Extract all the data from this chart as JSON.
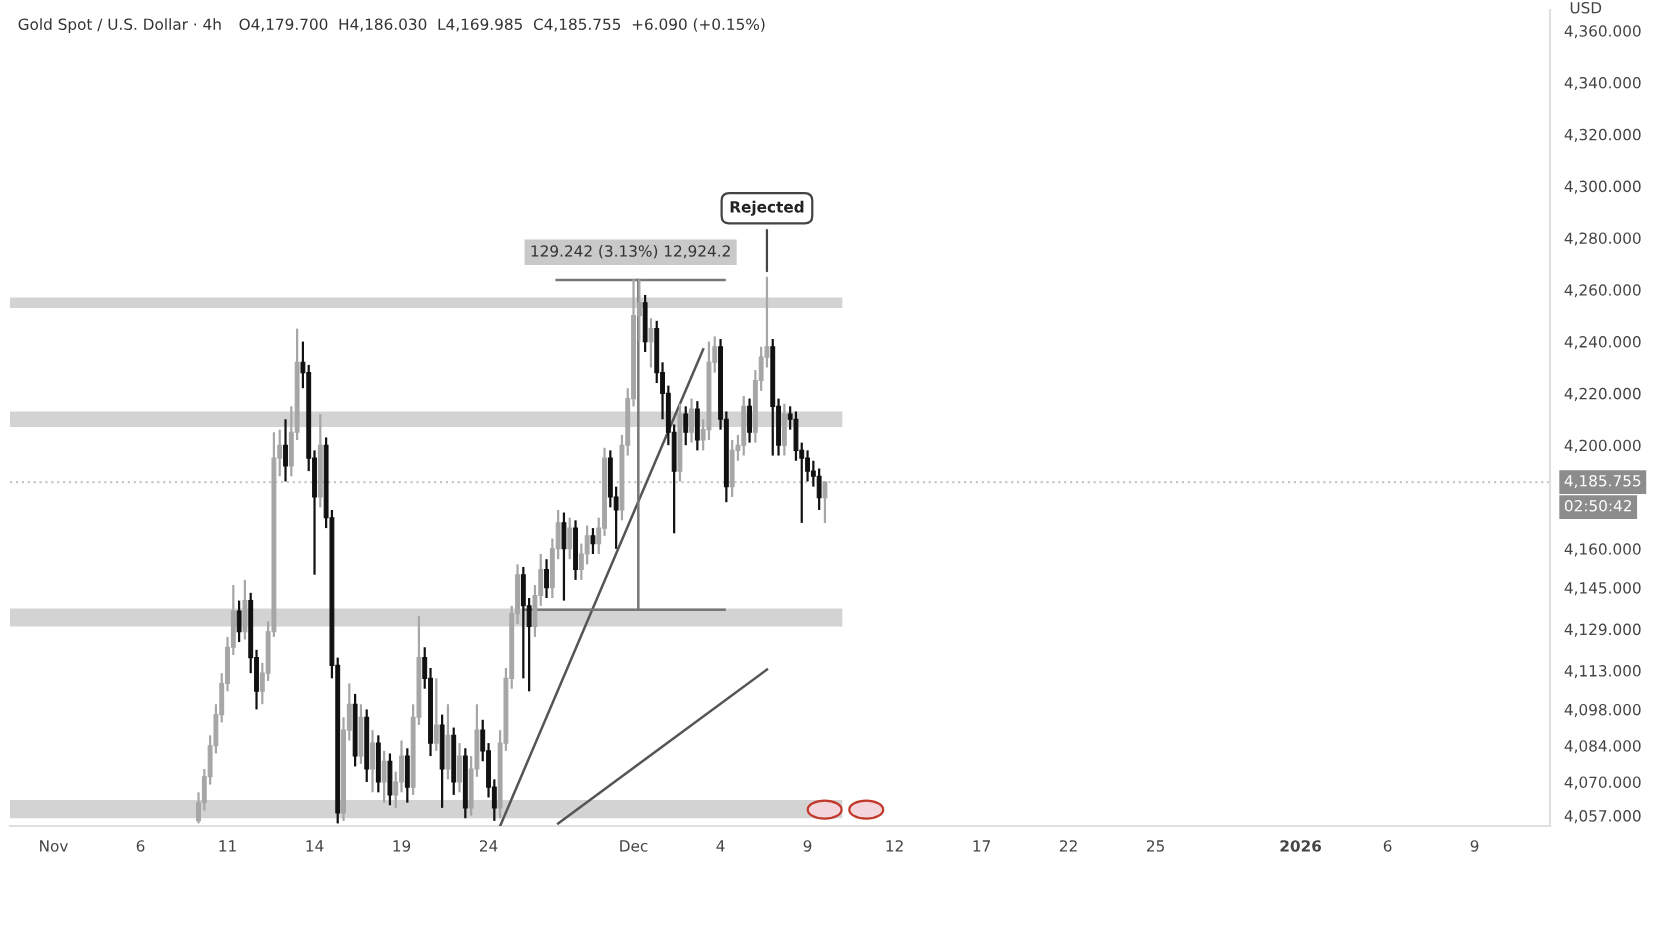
{
  "chart_data": {
    "type": "candlestick",
    "title": "Gold Spot / U.S. Dollar · 4h",
    "subtitle": "O4,179.700  H4,186.030  L4,169.985  C4,185.755  +6.090 (+0.15%)",
    "ylabel": "USD",
    "categories": [
      "Nov",
      null,
      null,
      null,
      null,
      null,
      null,
      null,
      null,
      null,
      null,
      null,
      null,
      null,
      null,
      "6",
      null,
      null,
      null,
      null,
      null,
      null,
      null,
      null,
      null,
      null,
      null,
      null,
      null,
      null,
      "11",
      null,
      null,
      null,
      null,
      null,
      null,
      null,
      null,
      null,
      null,
      null,
      null,
      null,
      null,
      "14",
      null,
      null,
      null,
      null,
      null,
      null,
      null,
      null,
      null,
      null,
      null,
      null,
      null,
      null,
      "19",
      null,
      null,
      null,
      null,
      null,
      null,
      null,
      null,
      null,
      null,
      null,
      null,
      null,
      null,
      "24",
      null,
      null,
      null,
      null,
      null,
      null,
      null,
      null,
      null,
      null,
      null,
      null,
      null,
      null,
      null,
      null,
      null,
      null,
      null,
      null,
      null,
      null,
      null,
      null,
      "Dec",
      null,
      null,
      null,
      null,
      null,
      null,
      null,
      null,
      null,
      null,
      null,
      null,
      null,
      null,
      "4",
      null,
      null,
      null,
      null,
      null,
      null,
      null,
      null,
      null,
      null,
      null,
      null,
      null,
      null,
      "9",
      null,
      null,
      null,
      null,
      null,
      null,
      null,
      null,
      null,
      null,
      null,
      null,
      null,
      null,
      "12",
      null,
      null,
      null,
      null,
      null,
      null,
      null,
      null,
      null,
      null,
      null,
      null,
      null,
      null,
      "17",
      null,
      null,
      null,
      null,
      null,
      null,
      null,
      null,
      null,
      null,
      null,
      null,
      null,
      null,
      "22",
      null,
      null,
      null,
      null,
      null,
      null,
      null,
      null,
      null,
      null,
      null,
      null,
      null,
      null,
      "25",
      null,
      null,
      null,
      null,
      null,
      null,
      null,
      null,
      null,
      null,
      null,
      null,
      null,
      null,
      null,
      null,
      null,
      null,
      null,
      null,
      null,
      null,
      null,
      null,
      "2026",
      null,
      null,
      null,
      null,
      null,
      null,
      null,
      null,
      null,
      null,
      null,
      null,
      null,
      null,
      "6",
      null,
      null,
      null,
      null,
      null,
      null,
      null,
      null,
      null,
      null,
      null,
      null,
      null,
      null,
      "9",
      null,
      null,
      null,
      null,
      null,
      null,
      null,
      null,
      null,
      null,
      null,
      null,
      null,
      null,
      null
    ],
    "ohlc": [
      null,
      null,
      null,
      null,
      null,
      null,
      null,
      null,
      null,
      null,
      null,
      null,
      null,
      null,
      null,
      null,
      null,
      null,
      null,
      null,
      null,
      null,
      null,
      null,
      null,
      [
        4055,
        4066,
        4054,
        4062
      ],
      [
        4062,
        4075,
        4059,
        4072
      ],
      [
        4072,
        4088,
        4069,
        4084
      ],
      [
        4084,
        4100,
        4081,
        4096
      ],
      [
        4096,
        4112,
        4093,
        4108
      ],
      [
        4108,
        4126,
        4105,
        4122
      ],
      [
        4122,
        4146,
        4119,
        4136
      ],
      [
        4136,
        4140,
        4124,
        4128
      ],
      [
        4128,
        4148,
        4125,
        4140
      ],
      [
        4140,
        4143,
        4112,
        4118
      ],
      [
        4118,
        4121,
        4098,
        4105
      ],
      [
        4105,
        4116,
        4100,
        4112
      ],
      [
        4112,
        4132,
        4109,
        4128
      ],
      [
        4128,
        4205,
        4126,
        4195
      ],
      [
        4195,
        4206,
        4188,
        4200
      ],
      [
        4200,
        4210,
        4186,
        4192
      ],
      [
        4192,
        4215,
        4188,
        4205
      ],
      [
        4205,
        4245,
        4202,
        4232
      ],
      [
        4232,
        4240,
        4222,
        4228
      ],
      [
        4228,
        4231,
        4190,
        4195
      ],
      [
        4195,
        4198,
        4150,
        4180
      ],
      [
        4180,
        4212,
        4176,
        4200
      ],
      [
        4200,
        4203,
        4168,
        4172
      ],
      [
        4172,
        4175,
        4110,
        4115
      ],
      [
        4115,
        4118,
        4054,
        4058
      ],
      [
        4058,
        4095,
        4055,
        4090
      ],
      [
        4090,
        4108,
        4086,
        4100
      ],
      [
        4100,
        4104,
        4076,
        4080
      ],
      [
        4080,
        4100,
        4077,
        4095
      ],
      [
        4095,
        4098,
        4070,
        4075
      ],
      [
        4075,
        4090,
        4066,
        4085
      ],
      [
        4085,
        4088,
        4066,
        4070
      ],
      [
        4070,
        4082,
        4062,
        4078
      ],
      [
        4078,
        4081,
        4061,
        4065
      ],
      [
        4065,
        4074,
        4060,
        4070
      ],
      [
        4070,
        4086,
        4066,
        4080
      ],
      [
        4080,
        4083,
        4062,
        4068
      ],
      [
        4068,
        4100,
        4065,
        4095
      ],
      [
        4095,
        4134,
        4092,
        4118
      ],
      [
        4118,
        4122,
        4106,
        4110
      ],
      [
        4110,
        4114,
        4080,
        4085
      ],
      [
        4085,
        4110,
        4082,
        4092
      ],
      [
        4092,
        4096,
        4060,
        4075
      ],
      [
        4075,
        4100,
        4071,
        4088
      ],
      [
        4088,
        4091,
        4065,
        4070
      ],
      [
        4070,
        4085,
        4066,
        4080
      ],
      [
        4080,
        4083,
        4056,
        4060
      ],
      [
        4060,
        4080,
        4057,
        4075
      ],
      [
        4075,
        4100,
        4072,
        4090
      ],
      [
        4090,
        4094,
        4078,
        4082
      ],
      [
        4082,
        4085,
        4064,
        4068
      ],
      [
        4068,
        4071,
        4055,
        4060
      ],
      [
        4060,
        4090,
        4056,
        4085
      ],
      [
        4085,
        4114,
        4082,
        4110
      ],
      [
        4110,
        4138,
        4106,
        4135
      ],
      [
        4135,
        4154,
        4131,
        4150
      ],
      [
        4150,
        4153,
        4110,
        4138
      ],
      [
        4138,
        4141,
        4105,
        4130
      ],
      [
        4130,
        4146,
        4126,
        4142
      ],
      [
        4142,
        4158,
        4138,
        4152
      ],
      [
        4152,
        4156,
        4141,
        4145
      ],
      [
        4145,
        4164,
        4141,
        4160
      ],
      [
        4160,
        4175,
        4156,
        4170
      ],
      [
        4170,
        4174,
        4140,
        4160
      ],
      [
        4160,
        4172,
        4156,
        4168
      ],
      [
        4168,
        4171,
        4148,
        4152
      ],
      [
        4152,
        4162,
        4148,
        4158
      ],
      [
        4158,
        4169,
        4154,
        4165
      ],
      [
        4165,
        4168,
        4158,
        4162
      ],
      [
        4162,
        4172,
        4158,
        4168
      ],
      [
        4168,
        4199,
        4165,
        4195
      ],
      [
        4195,
        4198,
        4176,
        4180
      ],
      [
        4180,
        4184,
        4160,
        4175
      ],
      [
        4175,
        4204,
        4171,
        4200
      ],
      [
        4200,
        4222,
        4196,
        4218
      ],
      [
        4218,
        4264,
        4215,
        4250
      ],
      [
        4250,
        4264,
        4240,
        4255
      ],
      [
        4255,
        4258,
        4236,
        4240
      ],
      [
        4240,
        4249,
        4230,
        4245
      ],
      [
        4245,
        4248,
        4224,
        4228
      ],
      [
        4228,
        4232,
        4210,
        4220
      ],
      [
        4220,
        4223,
        4200,
        4205
      ],
      [
        4205,
        4208,
        4166,
        4190
      ],
      [
        4190,
        4216,
        4186,
        4212
      ],
      [
        4212,
        4215,
        4200,
        4205
      ],
      [
        4205,
        4218,
        4201,
        4214
      ],
      [
        4214,
        4217,
        4198,
        4202
      ],
      [
        4202,
        4210,
        4198,
        4206
      ],
      [
        4206,
        4240,
        4202,
        4232
      ],
      [
        4232,
        4242,
        4228,
        4238
      ],
      [
        4238,
        4241,
        4206,
        4210
      ],
      [
        4210,
        4213,
        4178,
        4184
      ],
      [
        4184,
        4202,
        4180,
        4198
      ],
      [
        4198,
        4204,
        4194,
        4200
      ],
      [
        4200,
        4219,
        4196,
        4215
      ],
      [
        4215,
        4218,
        4201,
        4205
      ],
      [
        4205,
        4229,
        4201,
        4225
      ],
      [
        4225,
        4238,
        4221,
        4234
      ],
      [
        4234,
        4265,
        4230,
        4238
      ],
      [
        4238,
        4241,
        4196,
        4215
      ],
      [
        4215,
        4218,
        4196,
        4200
      ],
      [
        4200,
        4216,
        4196,
        4212
      ],
      [
        4212,
        4215,
        4206,
        4210
      ],
      [
        4210,
        4213,
        4194,
        4198
      ],
      [
        4198,
        4201,
        4170,
        4195
      ],
      [
        4195,
        4198,
        4186,
        4190
      ],
      [
        4190,
        4194,
        4184,
        4188
      ],
      [
        4188,
        4191,
        4175,
        4179.7
      ],
      [
        4179.7,
        4186.03,
        4169.985,
        4185.755
      ],
      null,
      null,
      null,
      null,
      null,
      null,
      null,
      null,
      null,
      null,
      null,
      null,
      null,
      null,
      null,
      null,
      null,
      null,
      null,
      null,
      null,
      null,
      null,
      null,
      null,
      null,
      null,
      null,
      null,
      null,
      null,
      null,
      null,
      null,
      null,
      null,
      null,
      null,
      null,
      null,
      null,
      null,
      null,
      null,
      null,
      null,
      null,
      null,
      null,
      null,
      null,
      null,
      null,
      null,
      null,
      null,
      null,
      null,
      null,
      null,
      null,
      null,
      null,
      null,
      null,
      null,
      null,
      null,
      null,
      null,
      null,
      null,
      null,
      null,
      null,
      null,
      null,
      null,
      null,
      null,
      null,
      null,
      null,
      null,
      null,
      null,
      null,
      null,
      null,
      null,
      null,
      null,
      null,
      null,
      null,
      null,
      null,
      null,
      null,
      null,
      null,
      null,
      null,
      null,
      null,
      null,
      null,
      null,
      null,
      null,
      null,
      null,
      null,
      null,
      null,
      null,
      null,
      null,
      null,
      null,
      null,
      null,
      null,
      null,
      null,
      null,
      null
    ],
    "series": [
      {
        "type": "line",
        "color": "#555555",
        "values": [
          null,
          null,
          null,
          null,
          null,
          null,
          null,
          null,
          null,
          null,
          null,
          null,
          null,
          null,
          null,
          null,
          null,
          null,
          null,
          null,
          null,
          null,
          null,
          null,
          null,
          null,
          null,
          null,
          null,
          null,
          null,
          null,
          null,
          null,
          null,
          null,
          null,
          null,
          null,
          null,
          null,
          null,
          null,
          null,
          null,
          null,
          null,
          null,
          null,
          null,
          null,
          null,
          null,
          null,
          null,
          null,
          null,
          null,
          null,
          null,
          null,
          null,
          null,
          null,
          null,
          null,
          null,
          null,
          null,
          null,
          null,
          null,
          null,
          null,
          null,
          null,
          null,
          4053,
          null,
          null,
          null,
          null,
          null,
          null,
          null,
          null,
          null,
          null,
          null,
          null,
          null,
          null,
          null,
          null,
          null,
          null,
          null,
          null,
          null,
          null,
          null,
          null,
          null,
          null,
          null,
          null,
          null,
          null,
          null,
          null,
          null,
          null,
          4237,
          null,
          null,
          null,
          null,
          null,
          null,
          null,
          null,
          null,
          null,
          null,
          null,
          null,
          null,
          null,
          null,
          null,
          null,
          null,
          null,
          null,
          null,
          null,
          null,
          null,
          null,
          null,
          null,
          null,
          null,
          null,
          null,
          null,
          null,
          null,
          null,
          null,
          null,
          null,
          null,
          null,
          null,
          null,
          null,
          null,
          null,
          null,
          null,
          null,
          null,
          null,
          null,
          null,
          null,
          null,
          null,
          null,
          null,
          null,
          null,
          null,
          null,
          null,
          null,
          null,
          null,
          null,
          null,
          null,
          null,
          null,
          null,
          null,
          null,
          null,
          null,
          null,
          null,
          null,
          null,
          null,
          null,
          null,
          null,
          null,
          null,
          null,
          null,
          null,
          null,
          null,
          null,
          null,
          null,
          null,
          null,
          null,
          null,
          null,
          null,
          null,
          null,
          null,
          null,
          null,
          null,
          null,
          null,
          null,
          null,
          null,
          null,
          null,
          null,
          null,
          null,
          null,
          null,
          null,
          null,
          null,
          null,
          null,
          null,
          null,
          null,
          null,
          null,
          null,
          null,
          null,
          null,
          null,
          null,
          null,
          null,
          null,
          null,
          null,
          null,
          null,
          null,
          null,
          null,
          null,
          null,
          null,
          null
        ]
      },
      {
        "type": "line",
        "color": "#555555",
        "values": [
          null,
          null,
          null,
          null,
          null,
          null,
          null,
          null,
          null,
          null,
          null,
          null,
          null,
          null,
          null,
          null,
          null,
          null,
          null,
          null,
          null,
          null,
          null,
          null,
          null,
          null,
          null,
          null,
          null,
          null,
          null,
          null,
          null,
          null,
          null,
          null,
          null,
          null,
          null,
          null,
          null,
          null,
          null,
          null,
          null,
          null,
          null,
          null,
          null,
          null,
          null,
          null,
          null,
          null,
          null,
          null,
          null,
          null,
          null,
          null,
          null,
          null,
          null,
          null,
          null,
          null,
          null,
          null,
          null,
          null,
          null,
          null,
          null,
          null,
          null,
          null,
          null,
          null,
          null,
          null,
          null,
          null,
          null,
          null,
          null,
          null,
          null,
          4054,
          null,
          null,
          null,
          null,
          null,
          null,
          null,
          null,
          null,
          null,
          null,
          null,
          null,
          null,
          null,
          null,
          null,
          null,
          null,
          null,
          null,
          null,
          null,
          null,
          null,
          null,
          null,
          null,
          null,
          null,
          null,
          null,
          null,
          null,
          null,
          4113.4,
          null,
          null,
          null,
          null,
          null,
          null,
          null,
          null,
          null,
          null,
          null,
          null,
          null,
          null,
          null,
          null,
          null,
          null,
          null,
          null,
          null,
          null,
          null,
          null,
          null,
          null,
          null,
          null,
          null,
          null,
          null,
          null,
          null,
          null,
          null,
          null,
          null,
          null,
          null,
          null,
          null,
          null,
          null,
          null,
          null,
          null,
          null,
          null,
          null,
          null,
          null,
          null,
          null,
          null,
          null,
          null,
          null,
          null,
          null,
          null,
          null,
          null,
          null,
          null,
          null,
          null,
          null,
          null,
          null,
          null,
          null,
          null,
          null,
          null,
          null,
          null,
          null,
          null,
          null,
          null,
          null,
          null,
          null,
          null,
          null,
          null,
          null,
          null,
          null,
          null,
          null,
          null,
          null,
          null,
          null,
          null,
          null,
          null,
          null,
          null,
          null,
          null,
          null,
          null,
          null,
          null,
          null,
          null,
          null,
          null,
          null,
          null,
          null,
          null,
          null,
          null,
          null,
          null,
          null,
          null,
          null,
          null,
          null,
          null,
          null,
          null,
          null,
          null,
          null,
          null,
          null,
          null,
          null,
          null,
          null,
          null,
          null
        ]
      }
    ],
    "bands": [
      {
        "axis": "y",
        "from": 4253,
        "to": 4257,
        "color": "#d3d3d3"
      },
      {
        "axis": "y",
        "from": 4207,
        "to": 4213,
        "color": "#d3d3d3"
      },
      {
        "axis": "y",
        "from": 4130,
        "to": 4137,
        "color": "#d3d3d3"
      },
      {
        "axis": "y",
        "from": 4056,
        "to": 4063,
        "color": "#d3d3d3"
      }
    ],
    "ref_lines": [
      {
        "axis": "y",
        "value": 4185.755,
        "label": "4,185.755",
        "color": "#c8c8c8",
        "line_style": "dotted"
      }
    ],
    "annotations": [
      "129.242 (3.13%) 12,924.2",
      {
        "text": "Rejected",
        "y": 4265
      },
      "02:50:42"
    ],
    "ylim": [
      4053,
      4368
    ],
    "yticks": [
      {
        "value": 4057,
        "label": "4,057.000"
      },
      {
        "value": 4070,
        "label": "4,070.000"
      },
      {
        "value": 4084,
        "label": "4,084.000"
      },
      {
        "value": 4098,
        "label": "4,098.000"
      },
      {
        "value": 4113,
        "label": "4,113.000"
      },
      {
        "value": 4129,
        "label": "4,129.000"
      },
      {
        "value": 4145,
        "label": "4,145.000"
      },
      {
        "value": 4160,
        "label": "4,160.000"
      },
      {
        "value": 4200,
        "label": "4,200.000"
      },
      {
        "value": 4220,
        "label": "4,220.000"
      },
      {
        "value": 4240,
        "label": "4,240.000"
      },
      {
        "value": 4260,
        "label": "4,260.000"
      },
      {
        "value": 4280,
        "label": "4,280.000"
      },
      {
        "value": 4300,
        "label": "4,300.000"
      },
      {
        "value": 4320,
        "label": "4,320.000"
      },
      {
        "value": 4340,
        "label": "4,340.000"
      },
      {
        "value": 4360,
        "label": "4,360.000"
      }
    ]
  }
}
